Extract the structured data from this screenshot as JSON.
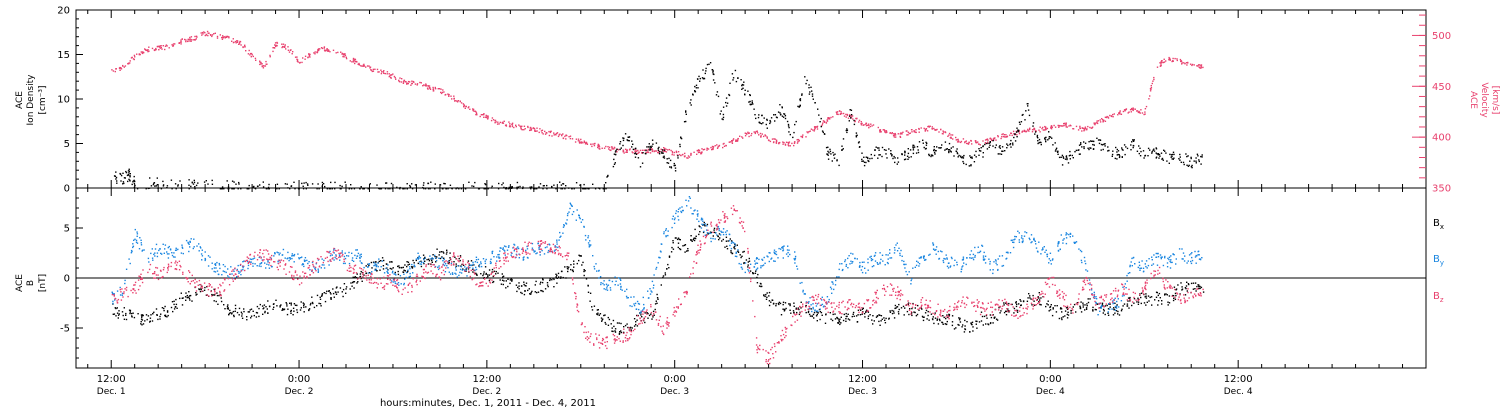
{
  "chart_data": [
    {
      "type": "scatter",
      "panel": "top",
      "ylabel_lines": [
        "ACE",
        "Ion Density",
        "[cm⁻³]"
      ],
      "ylim": [
        0,
        20
      ],
      "yticks": [
        0,
        5,
        10,
        15,
        20
      ],
      "right_axis": {
        "ylabel_lines": [
          "ACE",
          "Velocity",
          "[km/s]"
        ],
        "ylim": [
          350,
          525
        ],
        "yticks": [
          350,
          400,
          450,
          500
        ],
        "color": "#e8416e"
      },
      "series": [
        {
          "axis": "left",
          "color": "#000000",
          "x": [
            0,
            1,
            1.5,
            2,
            4,
            6,
            8,
            10,
            12,
            14,
            16,
            18,
            20,
            22,
            24,
            26,
            28,
            30,
            32,
            34,
            36,
            38,
            40,
            42,
            43,
            44,
            45,
            46,
            47,
            48,
            49,
            50,
            51,
            52,
            53,
            54,
            55,
            56,
            57,
            58,
            59,
            60,
            61,
            62,
            63,
            64,
            65,
            66,
            67,
            68,
            69,
            70,
            71,
            72,
            73,
            74,
            75,
            76,
            77,
            78,
            79,
            80,
            81,
            82,
            83,
            84,
            85,
            86,
            87,
            88,
            89,
            90,
            91,
            92,
            93
          ],
          "values": [
            1.3,
            1.2,
            1.6,
            0.5,
            0.6,
            0.4,
            0.5,
            0.2,
            0.1,
            0.1,
            0.1,
            0.1,
            0.1,
            0.1,
            0.1,
            0.1,
            0.1,
            0.1,
            0.1,
            0.1,
            0.1,
            0.1,
            0.1,
            0.1,
            4,
            6,
            3,
            5,
            4,
            2,
            9,
            12,
            14,
            8,
            13,
            11,
            8,
            7,
            9,
            6,
            12,
            10,
            4,
            3,
            9,
            3,
            4,
            4,
            3,
            4,
            5,
            4,
            5,
            4,
            3,
            4,
            5,
            4,
            6,
            9,
            5,
            6,
            3,
            4,
            5,
            5,
            4,
            4,
            5,
            4,
            4,
            3.5,
            3.5,
            3,
            3.5
          ]
        },
        {
          "axis": "right",
          "color": "#e8416e",
          "x": [
            0,
            1,
            2,
            3,
            4,
            5,
            6,
            7,
            8,
            9,
            10,
            11,
            12,
            13,
            14,
            15,
            16,
            17,
            18,
            19,
            20,
            21,
            22,
            23,
            24,
            25,
            26,
            27,
            28,
            29,
            30,
            31,
            32,
            33,
            34,
            35,
            36,
            37,
            38,
            39,
            40,
            41,
            42,
            43,
            44,
            45,
            46,
            47,
            48,
            49,
            50,
            51,
            52,
            53,
            54,
            55,
            56,
            57,
            58,
            59,
            60,
            61,
            62,
            63,
            64,
            65,
            66,
            67,
            68,
            69,
            70,
            71,
            72,
            73,
            74,
            75,
            76,
            77,
            78,
            79,
            80,
            81,
            82,
            83,
            84,
            85,
            86,
            87,
            88,
            89,
            90,
            91,
            92,
            93
          ],
          "values": [
            465,
            470,
            480,
            487,
            488,
            490,
            495,
            498,
            503,
            500,
            497,
            493,
            480,
            470,
            493,
            488,
            475,
            482,
            488,
            485,
            480,
            473,
            468,
            465,
            460,
            455,
            453,
            450,
            446,
            440,
            432,
            425,
            420,
            415,
            413,
            410,
            408,
            405,
            403,
            400,
            396,
            393,
            390,
            388,
            387,
            386,
            387,
            388,
            385,
            382,
            386,
            390,
            392,
            397,
            403,
            405,
            398,
            395,
            393,
            402,
            410,
            418,
            425,
            420,
            414,
            410,
            405,
            402,
            406,
            408,
            410,
            405,
            398,
            396,
            395,
            398,
            402,
            405,
            408,
            408,
            410,
            413,
            410,
            408,
            415,
            420,
            425,
            428,
            425,
            470,
            478,
            475,
            472,
            470
          ]
        }
      ]
    },
    {
      "type": "scatter",
      "panel": "bottom",
      "ylabel_lines": [
        "ACE",
        "B",
        "[nT]"
      ],
      "ylim": [
        -9,
        9
      ],
      "yticks": [
        -5,
        0,
        5
      ],
      "hline": 0,
      "legend": {
        "placement": "right",
        "entries": [
          "Bx",
          "By",
          "Bz"
        ]
      },
      "series": [
        {
          "name": "Bx",
          "color": "#000000",
          "x": [
            0,
            1,
            2,
            3,
            4,
            5,
            6,
            7,
            8,
            9,
            10,
            11,
            12,
            13,
            14,
            15,
            16,
            17,
            18,
            19,
            20,
            21,
            22,
            23,
            24,
            25,
            26,
            27,
            28,
            29,
            30,
            31,
            32,
            33,
            34,
            35,
            36,
            37,
            38,
            39,
            40,
            41,
            42,
            43,
            44,
            45,
            46,
            47,
            48,
            49,
            50,
            51,
            52,
            53,
            54,
            55,
            56,
            57,
            58,
            59,
            60,
            61,
            62,
            63,
            64,
            65,
            66,
            67,
            68,
            69,
            70,
            71,
            72,
            73,
            74,
            75,
            76,
            77,
            78,
            79,
            80,
            81,
            82,
            83,
            84,
            85,
            86,
            87,
            88,
            89,
            90,
            91,
            92,
            93
          ],
          "values": [
            -3,
            -3.5,
            -4,
            -4,
            -3.5,
            -3,
            -2,
            -1.5,
            -1,
            -2,
            -3,
            -3.5,
            -3.5,
            -3,
            -2.5,
            -3,
            -3,
            -2.5,
            -2,
            -1.5,
            -1,
            0,
            1,
            1.5,
            1,
            1,
            1.5,
            2,
            2.5,
            2,
            1.5,
            1,
            0.5,
            0,
            -0.5,
            -1,
            -1,
            -0.5,
            0,
            1,
            2,
            -3,
            -4,
            -5,
            -5,
            -4,
            -4,
            0,
            4,
            3,
            5,
            5,
            4,
            3,
            2,
            0,
            -2,
            -3,
            -3,
            -3,
            -3.5,
            -4,
            -4,
            -4,
            -3.5,
            -4,
            -4,
            -3,
            -3,
            -3.5,
            -4,
            -4,
            -4.5,
            -5,
            -4,
            -4,
            -3,
            -3,
            -2,
            -2,
            -3,
            -3.5,
            -3,
            -2.5,
            -3,
            -3,
            -3,
            -2,
            -2,
            -2,
            -2,
            -1,
            -1,
            -1
          ]
        },
        {
          "name": "By",
          "color": "#1a86e0",
          "x": [
            0,
            1,
            2,
            3,
            4,
            5,
            6,
            7,
            8,
            9,
            10,
            11,
            12,
            13,
            14,
            15,
            16,
            17,
            18,
            19,
            20,
            21,
            22,
            23,
            24,
            25,
            26,
            27,
            28,
            29,
            30,
            31,
            32,
            33,
            34,
            35,
            36,
            37,
            38,
            39,
            40,
            41,
            42,
            43,
            44,
            45,
            46,
            47,
            48,
            49,
            50,
            51,
            52,
            53,
            54,
            55,
            56,
            57,
            58,
            59,
            60,
            61,
            62,
            63,
            64,
            65,
            66,
            67,
            68,
            69,
            70,
            71,
            72,
            73,
            74,
            75,
            76,
            77,
            78,
            79,
            80,
            81,
            82,
            83,
            84,
            85,
            86,
            87,
            88,
            89,
            90,
            91,
            92,
            93
          ],
          "values": [
            -2,
            -1,
            4.5,
            2,
            3,
            2.5,
            3,
            3.5,
            2,
            1,
            0.5,
            1,
            1.5,
            1.5,
            2,
            2.5,
            2,
            1,
            1.5,
            2.5,
            2,
            2.5,
            1,
            1.5,
            0,
            0,
            2,
            2,
            1.5,
            1,
            0.5,
            1.5,
            2,
            2.5,
            3,
            2.5,
            3,
            3,
            3.5,
            7,
            6,
            2,
            -1,
            0,
            -2,
            -3,
            -1,
            4,
            6,
            8,
            6,
            4,
            5,
            3,
            1,
            1.5,
            2,
            2.5,
            3,
            -2,
            -3,
            -2,
            1,
            2,
            1,
            2,
            2,
            3,
            0,
            2,
            3,
            2,
            1,
            2,
            3,
            1,
            2,
            4,
            4.5,
            3,
            2,
            4,
            4,
            1,
            -3,
            -3,
            -2,
            2,
            1,
            2,
            1.5,
            2.5,
            2,
            2.5
          ]
        },
        {
          "name": "Bz",
          "color": "#e8416e",
          "x": [
            0,
            1,
            2,
            3,
            4,
            5,
            6,
            7,
            8,
            9,
            10,
            11,
            12,
            13,
            14,
            15,
            16,
            17,
            18,
            19,
            20,
            21,
            22,
            23,
            24,
            25,
            26,
            27,
            28,
            29,
            30,
            31,
            32,
            33,
            34,
            35,
            36,
            37,
            38,
            39,
            40,
            41,
            42,
            43,
            44,
            45,
            46,
            47,
            48,
            49,
            50,
            51,
            52,
            53,
            54,
            55,
            56,
            57,
            58,
            59,
            60,
            61,
            62,
            63,
            64,
            65,
            66,
            67,
            68,
            69,
            70,
            71,
            72,
            73,
            74,
            75,
            76,
            77,
            78,
            79,
            80,
            81,
            82,
            83,
            84,
            85,
            86,
            87,
            88,
            89,
            90,
            91,
            92,
            93
          ],
          "values": [
            -2,
            -1.5,
            -1,
            1,
            0.5,
            1.5,
            1,
            -0.5,
            -1,
            -1.5,
            0,
            1,
            2,
            2.5,
            1.5,
            1,
            0,
            1,
            2,
            2.5,
            1.5,
            0.5,
            0,
            -0.5,
            0,
            -1.5,
            0,
            1,
            0.5,
            2,
            1.5,
            0,
            -0.5,
            1.5,
            2.5,
            3,
            3,
            3.5,
            3,
            2,
            -5,
            -6,
            -6.5,
            -6,
            -5.5,
            -4,
            -3,
            -5,
            -3,
            -1,
            3,
            5,
            6,
            7,
            5,
            -7,
            -8,
            -6,
            -4,
            -3,
            -2,
            -3,
            -3,
            -2.5,
            -3,
            -2,
            -1,
            -1.5,
            -3,
            -2.5,
            -3,
            -3.5,
            -3,
            -2,
            -3,
            -3,
            -2.5,
            -3.5,
            -3,
            -2,
            0,
            -2,
            -3,
            0,
            -2.5,
            -2,
            -1,
            -2,
            -1,
            1,
            -1,
            -2,
            -1.5,
            -1
          ]
        }
      ]
    }
  ],
  "x_axis": {
    "xlim": [
      -3,
      112
    ],
    "ticks": [
      {
        "x": 0,
        "time": "12:00",
        "day": "Dec. 1"
      },
      {
        "x": 16,
        "time": "0:00",
        "day": "Dec. 2"
      },
      {
        "x": 32,
        "time": "12:00",
        "day": "Dec. 2"
      },
      {
        "x": 48,
        "time": "0:00",
        "day": "Dec. 3"
      },
      {
        "x": 64,
        "time": "12:00",
        "day": "Dec. 3"
      },
      {
        "x": 80,
        "time": "0:00",
        "day": "Dec. 4"
      },
      {
        "x": 96,
        "time": "12:00",
        "day": "Dec. 4"
      }
    ],
    "title": "hours:minutes, Dec.  1, 2011 - Dec.  4, 2011"
  },
  "legend_labels": {
    "bx": "B",
    "bx_sub": "x",
    "by": "B",
    "by_sub": "y",
    "bz": "B",
    "bz_sub": "z"
  }
}
